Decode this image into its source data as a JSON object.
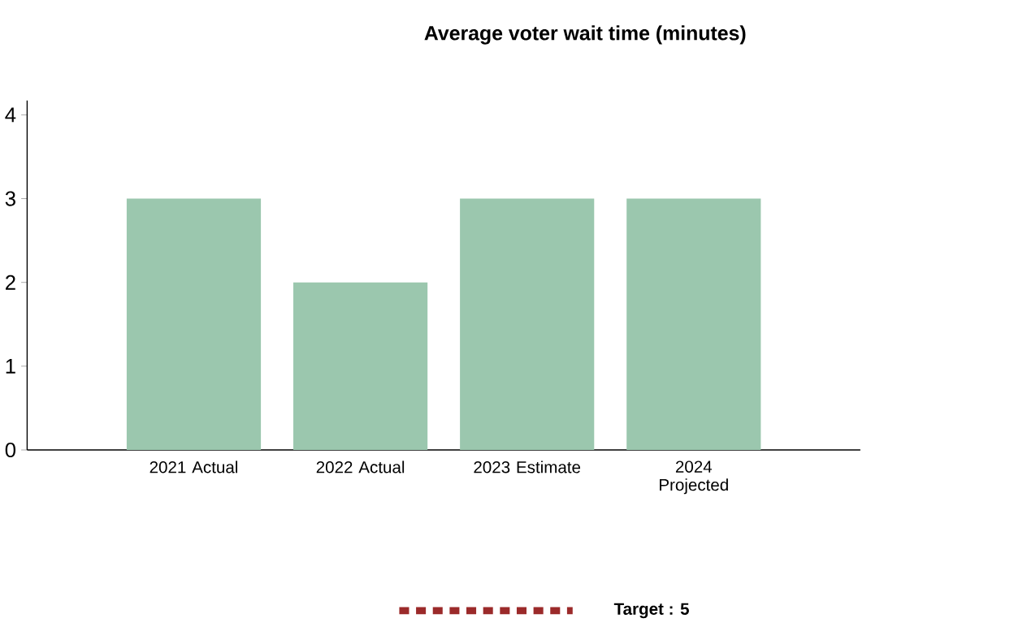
{
  "chart_data": {
    "type": "bar",
    "title": "Average voter wait time (minutes)",
    "categories": [
      "2021 Actual",
      "2022 Actual",
      "2023 Estimate",
      "2024 Projected"
    ],
    "values": [
      3,
      2,
      3,
      3
    ],
    "color": "#9bc7ae",
    "ylim": [
      0,
      4.17
    ],
    "yticks": [
      0,
      1,
      2,
      3,
      4
    ],
    "grid": false,
    "annotations": [
      "Target : 5"
    ]
  }
}
